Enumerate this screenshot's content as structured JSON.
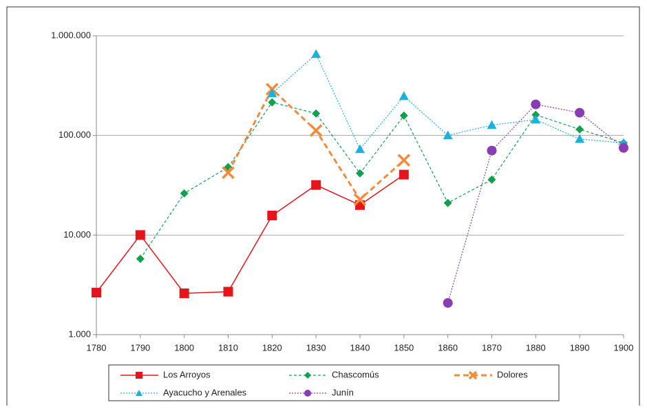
{
  "chart_data": {
    "type": "line",
    "x": [
      1780,
      1790,
      1800,
      1810,
      1820,
      1830,
      1840,
      1850,
      1860,
      1870,
      1880,
      1890,
      1900
    ],
    "xlim": [
      1780,
      1900
    ],
    "xticks": [
      1780,
      1790,
      1800,
      1810,
      1820,
      1830,
      1840,
      1850,
      1860,
      1870,
      1880,
      1890,
      1900
    ],
    "ylim": [
      1000,
      1000000
    ],
    "log_y": true,
    "yticks": [
      {
        "value": 1000,
        "label": "1.000"
      },
      {
        "value": 10000,
        "label": "10.000"
      },
      {
        "value": 100000,
        "label": "100.000"
      },
      {
        "value": 1000000,
        "label": "1.000.000"
      }
    ],
    "grid": true,
    "legend": "bottom",
    "series": [
      {
        "name": "Los Arroyos",
        "color": "#e8141c",
        "values": [
          2640,
          10000,
          2600,
          2700,
          15700,
          31800,
          20000,
          40400,
          null,
          null,
          null,
          null,
          null
        ]
      },
      {
        "name": "Chascomús",
        "color": "#10a050",
        "values": [
          null,
          5770,
          26200,
          48000,
          215000,
          166000,
          41600,
          158000,
          21000,
          36000,
          161000,
          115000,
          84000
        ]
      },
      {
        "name": "Dolores",
        "color": "#f08c3c",
        "values": [
          null,
          null,
          null,
          42300,
          291000,
          112000,
          22700,
          56400,
          null,
          null,
          null,
          null,
          null
        ]
      },
      {
        "name": "Ayacucho y Arenales",
        "color": "#1ab0e0",
        "values": [
          null,
          null,
          null,
          null,
          264000,
          656000,
          72800,
          248000,
          100000,
          127000,
          144000,
          92000,
          84000
        ]
      },
      {
        "name": "Junín",
        "color": "#8a3cb4",
        "values": [
          null,
          null,
          null,
          null,
          null,
          null,
          null,
          null,
          2080,
          70400,
          205000,
          169000,
          75000
        ]
      }
    ]
  }
}
